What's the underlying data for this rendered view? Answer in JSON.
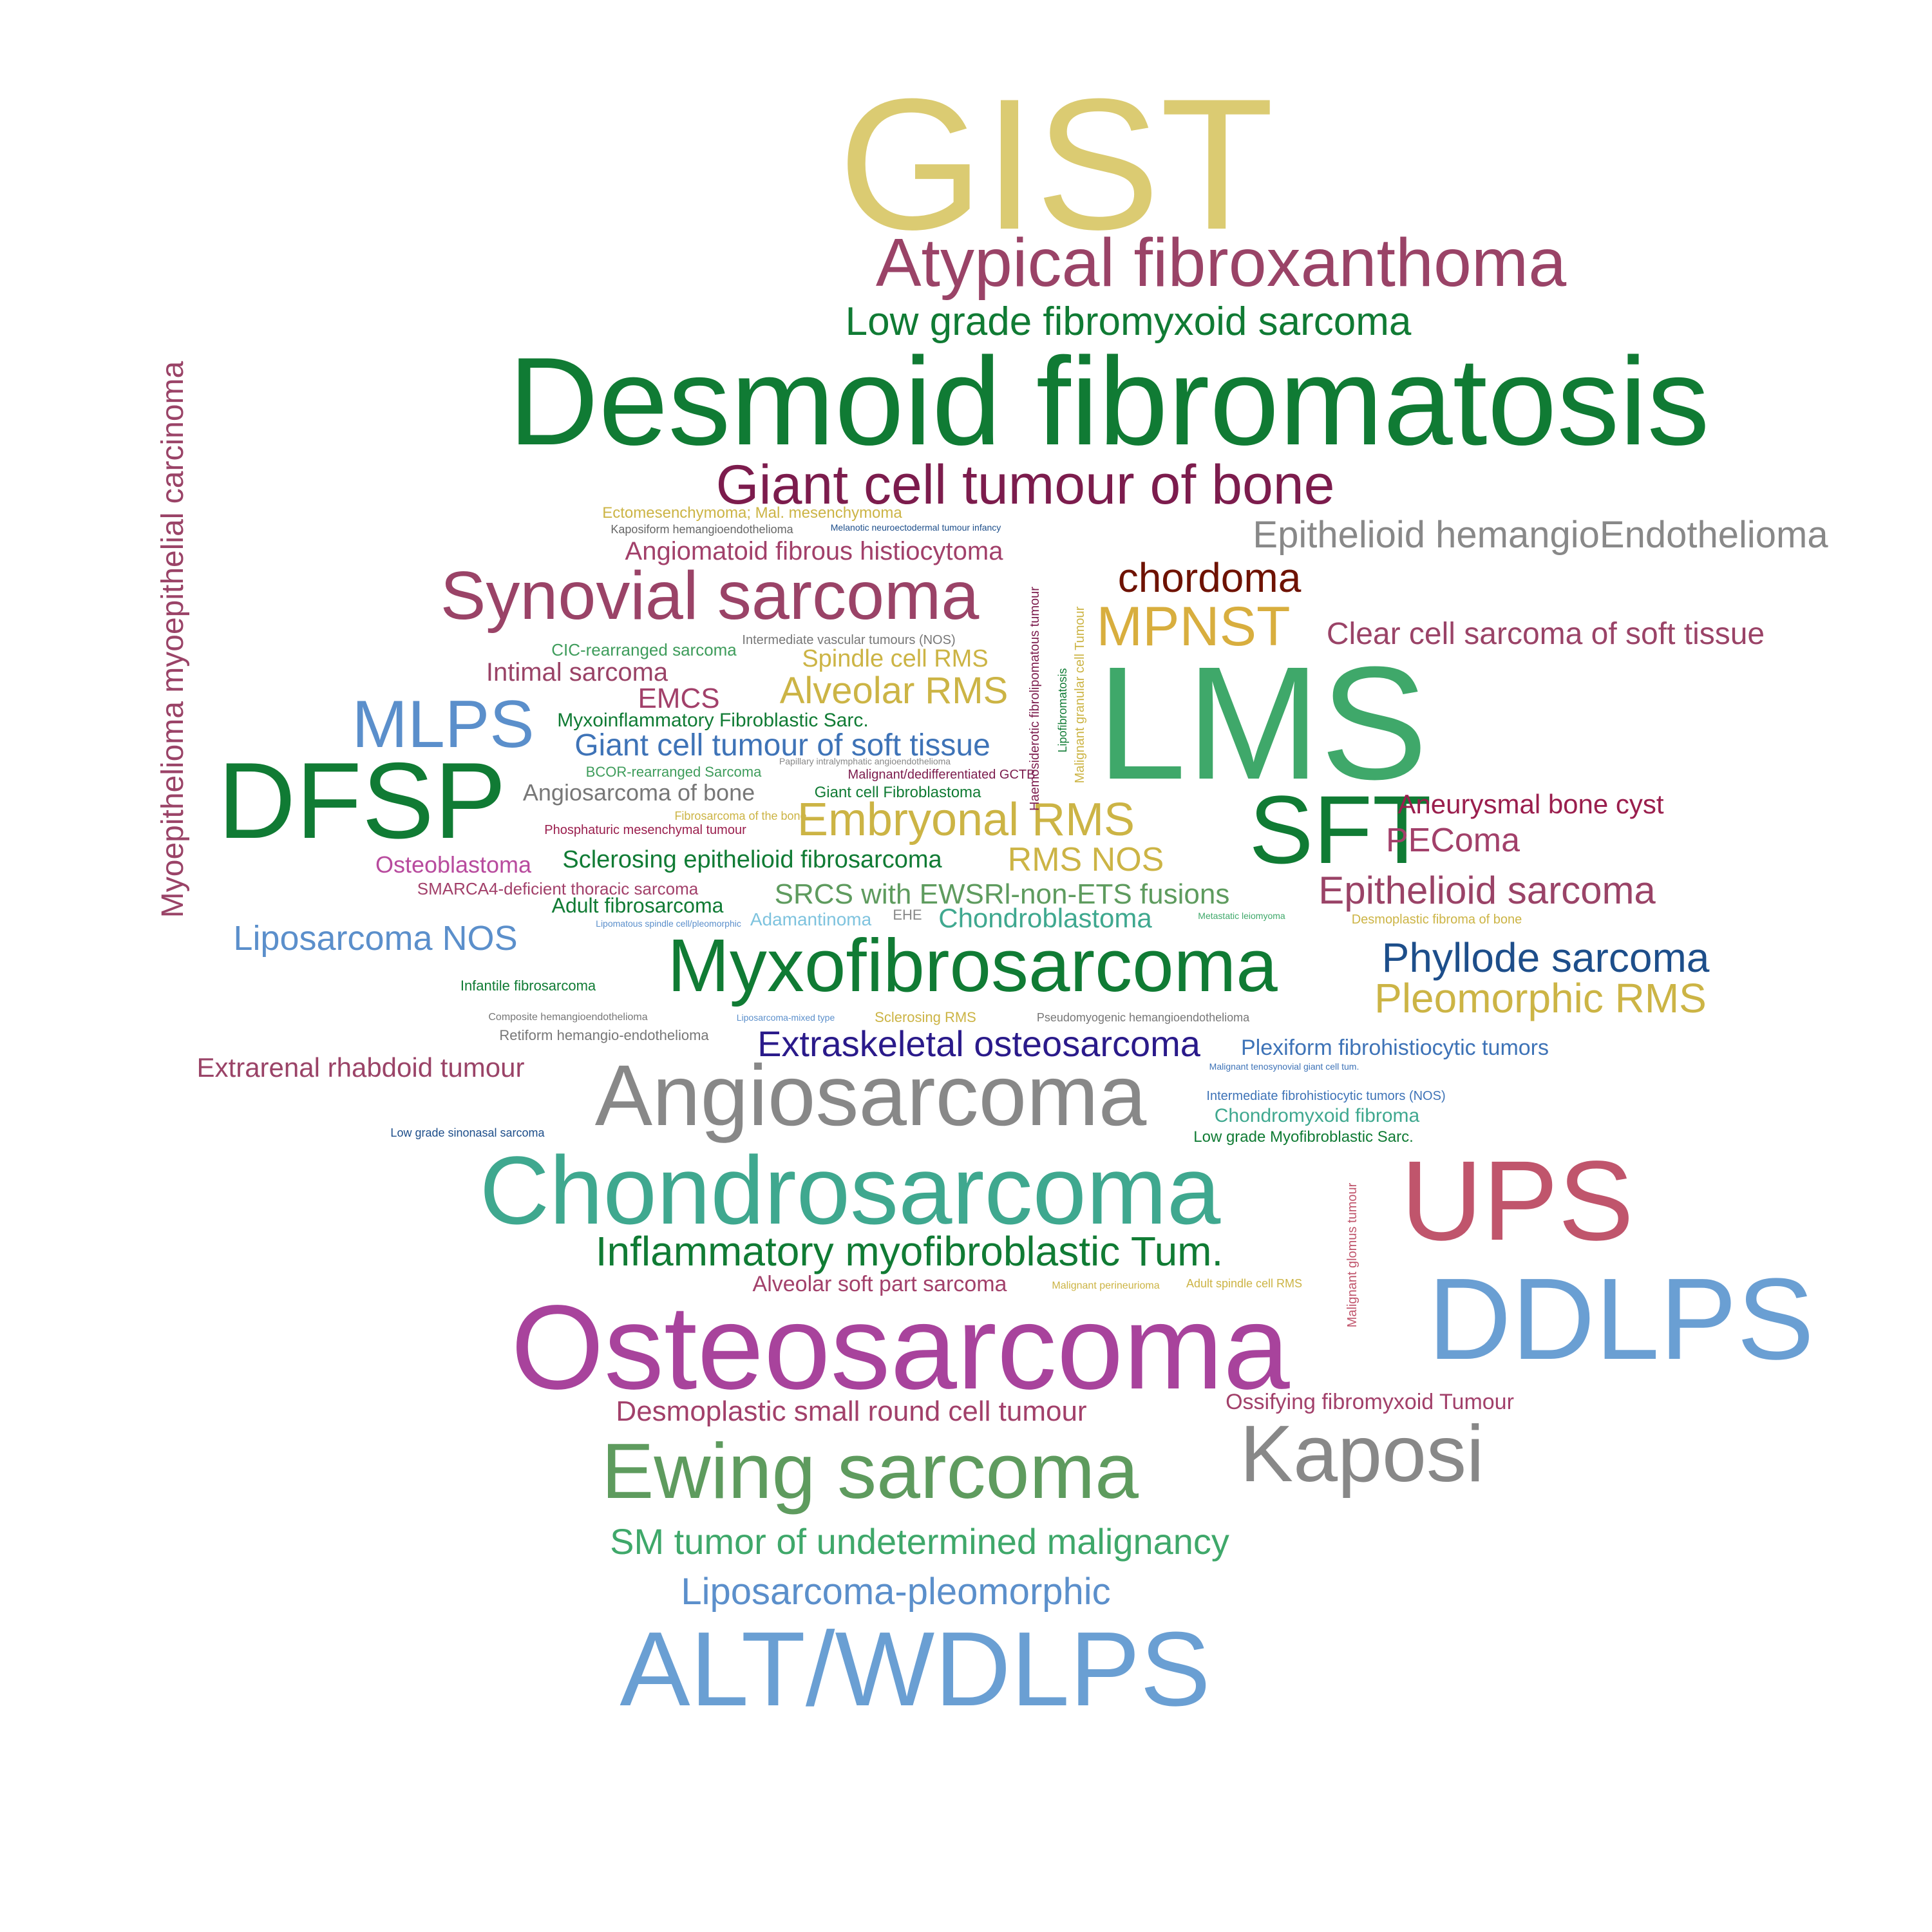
{
  "words": [
    {
      "text": "GIST",
      "color": "#DBCB72"
    },
    {
      "text": "Atypical fibroxanthoma",
      "color": "#9A4367"
    },
    {
      "text": "Low grade fibromyxoid sarcoma",
      "color": "#107B34"
    },
    {
      "text": "Desmoid fibromatosis",
      "color": "#107B34"
    },
    {
      "text": "Giant cell tumour of bone",
      "color": "#7C1C4D"
    },
    {
      "text": "Ectomesenchymoma; Mal. mesenchymoma",
      "color": "#CCB445"
    },
    {
      "text": "Kaposiform hemangioendothelioma",
      "color": "#666666"
    },
    {
      "text": "Melanotic neuroectodermal tumour infancy",
      "color": "#1D4E8A"
    },
    {
      "text": "Angiomatoid fibrous histiocytoma",
      "color": "#A2406A"
    },
    {
      "text": "Epithelioid hemangioEndothelioma",
      "color": "#888888"
    },
    {
      "text": "chordoma",
      "color": "#6E1200"
    },
    {
      "text": "Synovial sarcoma",
      "color": "#9A4367"
    },
    {
      "text": "MPNST",
      "color": "#D8AE3E"
    },
    {
      "text": "Clear cell sarcoma of soft tissue",
      "color": "#9A4367"
    },
    {
      "text": "Intermediate vascular tumours (NOS)",
      "color": "#777777"
    },
    {
      "text": "CIC-rearranged sarcoma",
      "color": "#3E9C5B"
    },
    {
      "text": "Spindle cell RMS",
      "color": "#CCB445"
    },
    {
      "text": "Intimal sarcoma",
      "color": "#9A4367"
    },
    {
      "text": "EMCS",
      "color": "#A2406A"
    },
    {
      "text": "Alveolar RMS",
      "color": "#CCB445"
    },
    {
      "text": "LMS",
      "color": "#3FA86A"
    },
    {
      "text": "MLPS",
      "color": "#5B8FCB"
    },
    {
      "text": "Myxoinflammatory Fibroblastic Sarc.",
      "color": "#107B34"
    },
    {
      "text": "Giant cell tumour of soft tissue",
      "color": "#3E73B7"
    },
    {
      "text": "Papillary intralymphatic angioendothelioma",
      "color": "#888888"
    },
    {
      "text": "BCOR-rearranged Sarcoma",
      "color": "#3E9C5B"
    },
    {
      "text": "Malignant/dedifferentiated GCTB",
      "color": "#7C1C4D"
    },
    {
      "text": "DFSP",
      "color": "#107B34"
    },
    {
      "text": "Angiosarcoma of bone",
      "color": "#777777"
    },
    {
      "text": "Giant cell Fibroblastoma",
      "color": "#107B34"
    },
    {
      "text": "SFT",
      "color": "#107B34"
    },
    {
      "text": "Aneurysmal bone cyst",
      "color": "#9A1E4D"
    },
    {
      "text": "Fibrosarcoma of the bone",
      "color": "#CCB445"
    },
    {
      "text": "Embryonal RMS",
      "color": "#CCB445"
    },
    {
      "text": "Phosphaturic mesenchymal tumour",
      "color": "#9A1E4D"
    },
    {
      "text": "PEComa",
      "color": "#A2406A"
    },
    {
      "text": "Osteoblastoma",
      "color": "#B84B9E"
    },
    {
      "text": "Sclerosing epithelioid fibrosarcoma",
      "color": "#107B34"
    },
    {
      "text": "RMS NOS",
      "color": "#CCB445"
    },
    {
      "text": "SMARCA4-deficient thoracic sarcoma",
      "color": "#A2406A"
    },
    {
      "text": "SRCS with EWSRl-non-ETS fusions",
      "color": "#5E9B5E"
    },
    {
      "text": "Epithelioid sarcoma",
      "color": "#9A4367"
    },
    {
      "text": "Adult fibrosarcoma",
      "color": "#107B34"
    },
    {
      "text": "Liposarcoma NOS",
      "color": "#5B8FCB"
    },
    {
      "text": "Lipomatous spindle cell/pleomorphic",
      "color": "#5B8FCB"
    },
    {
      "text": "Adamantinoma",
      "color": "#7EC3DE"
    },
    {
      "text": "EHE",
      "color": "#888888"
    },
    {
      "text": "Chondroblastoma",
      "color": "#3FA88F"
    },
    {
      "text": "Metastatic leiomyoma",
      "color": "#3FA86A"
    },
    {
      "text": "Desmoplastic fibroma of bone",
      "color": "#CCB445"
    },
    {
      "text": "Myxofibrosarcoma",
      "color": "#107B34"
    },
    {
      "text": "Phyllode sarcoma",
      "color": "#1D4E8A"
    },
    {
      "text": "Infantile fibrosarcoma",
      "color": "#107B34"
    },
    {
      "text": "Pleomorphic RMS",
      "color": "#CCB445"
    },
    {
      "text": "Composite hemangioendothelioma",
      "color": "#777777"
    },
    {
      "text": "Liposarcoma-mixed type",
      "color": "#5B8FCB"
    },
    {
      "text": "Sclerosing RMS",
      "color": "#CCB445"
    },
    {
      "text": "Pseudomyogenic hemangioendothelioma",
      "color": "#777777"
    },
    {
      "text": "Retiform hemangio-endothelioma",
      "color": "#777777"
    },
    {
      "text": "Extraskeletal osteosarcoma",
      "color": "#2A1A8A"
    },
    {
      "text": "Plexiform fibrohistiocytic tumors",
      "color": "#3E73B7"
    },
    {
      "text": "Extrarenal rhabdoid tumour",
      "color": "#9A4367"
    },
    {
      "text": "Malignant tenosynovial giant cell tum.",
      "color": "#3E73B7"
    },
    {
      "text": "Angiosarcoma",
      "color": "#888888"
    },
    {
      "text": "Intermediate fibrohistiocytic tumors (NOS)",
      "color": "#3E73B7"
    },
    {
      "text": "Low grade sinonasal sarcoma",
      "color": "#1D4E8A"
    },
    {
      "text": "Chondromyxoid fibroma",
      "color": "#3FA88F"
    },
    {
      "text": "Low grade Myofibroblastic Sarc.",
      "color": "#107B34"
    },
    {
      "text": "Chondrosarcoma",
      "color": "#3FA88F"
    },
    {
      "text": "UPS",
      "color": "#C0556C"
    },
    {
      "text": "Inflammatory myofibroblastic Tum.",
      "color": "#107B34"
    },
    {
      "text": "Alveolar soft part sarcoma",
      "color": "#A2406A"
    },
    {
      "text": "Malignant perineurioma",
      "color": "#CCB445"
    },
    {
      "text": "Adult spindle cell RMS",
      "color": "#CCB445"
    },
    {
      "text": "DDLPS",
      "color": "#6A9FD3"
    },
    {
      "text": "Osteosarcoma",
      "color": "#A8439C"
    },
    {
      "text": "Desmoplastic small round cell tumour",
      "color": "#A2406A"
    },
    {
      "text": "Ossifying fibromyxoid Tumour",
      "color": "#A2406A"
    },
    {
      "text": "Kaposi",
      "color": "#888888"
    },
    {
      "text": "Ewing sarcoma",
      "color": "#5E9B5E"
    },
    {
      "text": "SM tumor of undetermined malignancy",
      "color": "#3FA86A"
    },
    {
      "text": "Liposarcoma-pleomorphic",
      "color": "#5B8FCB"
    },
    {
      "text": "ALT/WDLPS",
      "color": "#6A9FD3"
    },
    {
      "text": "Myoepithelioma myoepithelial carcinoma",
      "color": "#9A4367"
    },
    {
      "text": "Haemosiderotic fibrolipomatous tumour",
      "color": "#7C1C4D"
    },
    {
      "text": "Malignant granular cell Tumour",
      "color": "#CCB445"
    },
    {
      "text": "Lipofibromatosis",
      "color": "#107B34"
    },
    {
      "text": "Malignant glomus tumour",
      "color": "#C0556C"
    }
  ]
}
